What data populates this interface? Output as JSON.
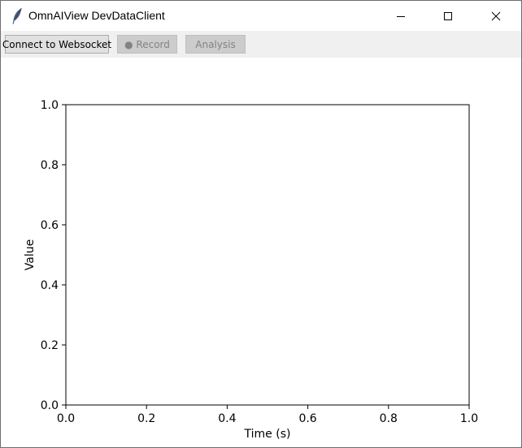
{
  "window": {
    "title": "OmnAIView DevDataClient",
    "icon": "feather-icon",
    "controls": [
      "minimize-icon",
      "maximize-icon",
      "close-icon"
    ]
  },
  "toolbar": {
    "connect_label": "Connect to Websocket",
    "record_label": "● Record",
    "analysis_label": "Analysis"
  },
  "chart_data": {
    "type": "line",
    "title": "",
    "xlabel": "Time (s)",
    "ylabel": "Value",
    "xlim": [
      0.0,
      1.0
    ],
    "ylim": [
      0.0,
      1.0
    ],
    "xticks": [
      "0.0",
      "0.2",
      "0.4",
      "0.6",
      "0.8",
      "1.0"
    ],
    "yticks": [
      "0.0",
      "0.2",
      "0.4",
      "0.6",
      "0.8",
      "1.0"
    ],
    "grid": false,
    "series": []
  }
}
